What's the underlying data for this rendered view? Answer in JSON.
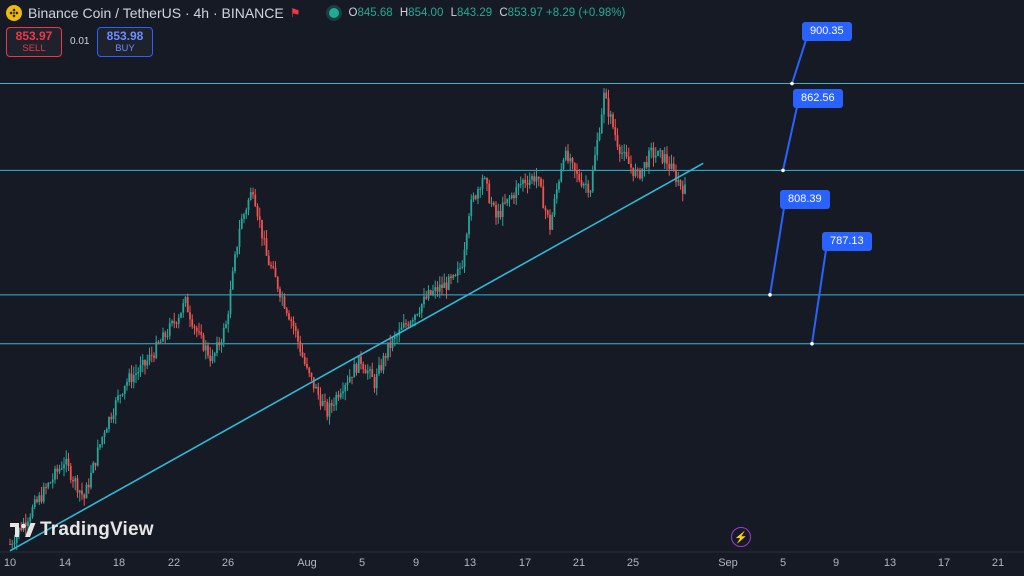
{
  "header": {
    "title": "Binance Coin / TetherUS · 4h · BINANCE",
    "ohlc": [
      {
        "key": "O",
        "value": "845.68"
      },
      {
        "key": "H",
        "value": "854.00"
      },
      {
        "key": "L",
        "value": "843.29"
      },
      {
        "key": "C",
        "value": "853.97 +8.29 (+0.98%)"
      }
    ]
  },
  "trade": {
    "sell_price": "853.97",
    "sell_label": "SELL",
    "buy_price": "853.98",
    "buy_label": "BUY",
    "spread": "0.01"
  },
  "brand": "TradingView",
  "colors": {
    "background": "#161a25",
    "up": "#26a69a",
    "down": "#ef5350",
    "level_line": "#31b7d4",
    "label_bg": "#2962ff"
  },
  "chart_data": {
    "type": "candlestick",
    "title": "Binance Coin / TetherUS · 4h · BINANCE",
    "xlabel": "",
    "ylabel": "",
    "x_tick_labels": [
      "10",
      "14",
      "18",
      "22",
      "26",
      "Aug",
      "5",
      "9",
      "13",
      "17",
      "21",
      "25",
      "Sep",
      "5",
      "9",
      "13",
      "17",
      "21"
    ],
    "x_tick_days": [
      10,
      14,
      18,
      22,
      26,
      31,
      35,
      39,
      43,
      47,
      51,
      55,
      62,
      66,
      70,
      74,
      78,
      82
    ],
    "x_axis_note_days_from_jul1": "days counted from Jul 1 (Aug=31, Sep=62)",
    "horizontal_levels": [
      {
        "label": "900.35",
        "value": 900.35
      },
      {
        "label": "862.56",
        "value": 862.56
      },
      {
        "label": "808.39",
        "value": 808.39
      },
      {
        "label": "787.13",
        "value": 787.13
      }
    ],
    "trendline": [
      {
        "day": 10,
        "price": 697
      },
      {
        "day": 59.5,
        "price": 860
      }
    ],
    "price_path": [
      [
        10,
        700
      ],
      [
        12,
        718
      ],
      [
        14,
        736
      ],
      [
        15.5,
        720
      ],
      [
        17,
        750
      ],
      [
        18.5,
        770
      ],
      [
        20,
        778
      ],
      [
        22,
        795
      ],
      [
        23,
        805
      ],
      [
        24,
        790
      ],
      [
        25,
        780
      ],
      [
        26,
        795
      ],
      [
        27,
        838
      ],
      [
        28,
        855
      ],
      [
        29,
        825
      ],
      [
        30,
        810
      ],
      [
        31,
        795
      ],
      [
        32,
        775
      ],
      [
        33.5,
        757
      ],
      [
        34.5,
        768
      ],
      [
        36,
        780
      ],
      [
        37,
        770
      ],
      [
        38,
        785
      ],
      [
        39.5,
        797
      ],
      [
        41,
        808
      ],
      [
        42,
        812
      ],
      [
        43,
        815
      ],
      [
        43.5,
        823
      ],
      [
        44,
        845
      ],
      [
        45,
        860
      ],
      [
        46,
        842
      ],
      [
        47,
        850
      ],
      [
        48,
        858
      ],
      [
        49,
        860
      ],
      [
        50,
        838
      ],
      [
        51,
        870
      ],
      [
        52,
        860
      ],
      [
        53,
        855
      ],
      [
        54,
        895
      ],
      [
        55,
        875
      ],
      [
        55.5,
        868
      ],
      [
        56.5,
        860
      ],
      [
        57.5,
        870
      ],
      [
        58.5,
        868
      ],
      [
        59.5,
        858
      ],
      [
        60,
        853.97
      ]
    ],
    "ylim": [
      693,
      915
    ],
    "grid": false
  }
}
